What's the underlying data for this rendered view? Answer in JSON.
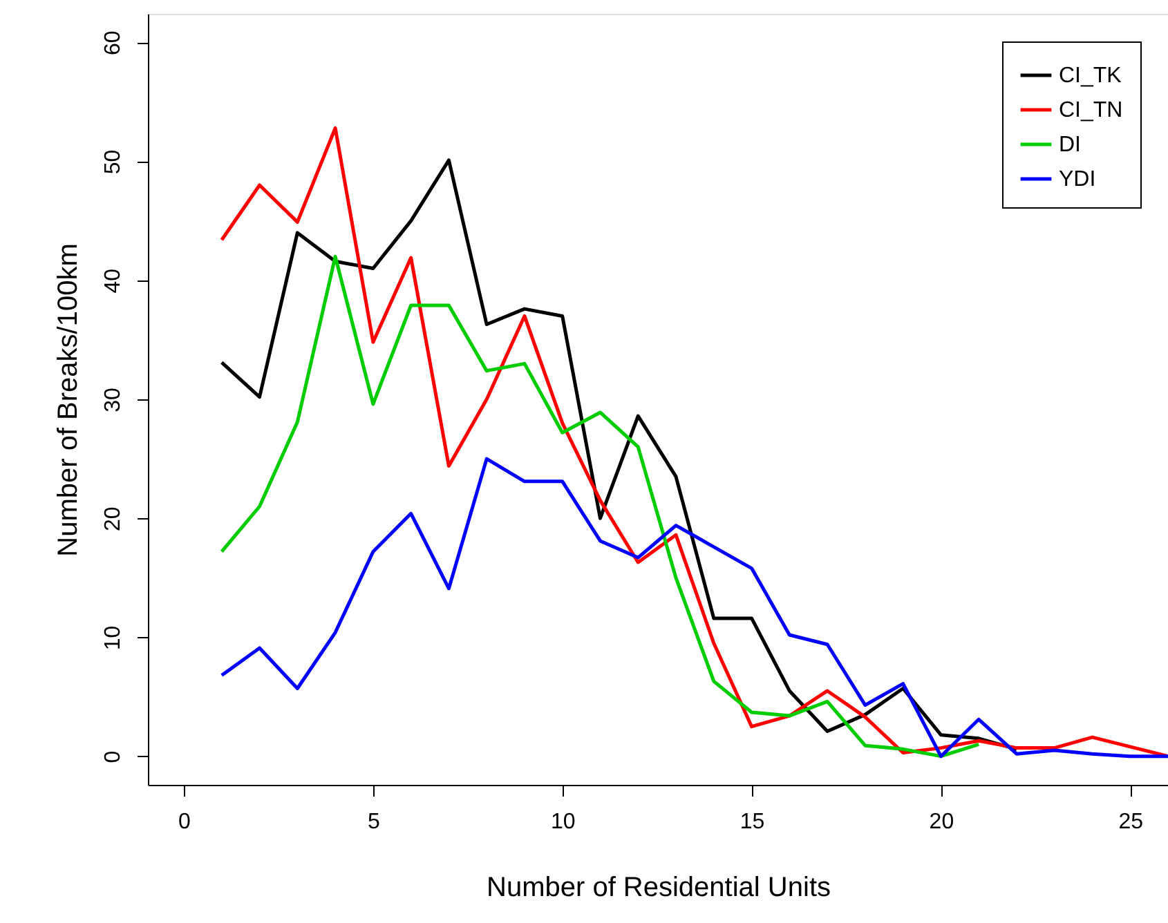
{
  "chart_data": {
    "type": "line",
    "xlabel": "Number of Residential Units",
    "ylabel": "Number of Breaks/100km",
    "xlim": [
      -0.95,
      26
    ],
    "xticks": [
      0,
      5,
      10,
      15,
      20,
      25
    ],
    "ylim": [
      -2.4,
      62.4
    ],
    "yticks": [
      0,
      10,
      20,
      30,
      40,
      50,
      60
    ],
    "grid": false,
    "legend": "top right",
    "marker": "none",
    "line_style": "solid",
    "series": [
      {
        "name": "CI_TK",
        "color": "#000000",
        "x": [
          1,
          2,
          3,
          4,
          5,
          6,
          7,
          8,
          9,
          10,
          11,
          12,
          13,
          14,
          15,
          16,
          17,
          18,
          19,
          20,
          21,
          22
        ],
        "values": [
          33.1,
          30.2,
          44,
          41.6,
          41,
          45,
          50.1,
          36.3,
          37.6,
          37,
          20,
          28.6,
          23.5,
          11.6,
          11.6,
          5.5,
          2.1,
          3.5,
          5.7,
          1.8,
          1.5,
          0.6
        ]
      },
      {
        "name": "CI_TN",
        "color": "#ff0000",
        "x": [
          1,
          2,
          3,
          4,
          5,
          6,
          7,
          8,
          9,
          10,
          11,
          12,
          13,
          14,
          15,
          16,
          17,
          18,
          19,
          20,
          21,
          22,
          23,
          24,
          25,
          26
        ],
        "values": [
          43.4,
          48,
          44.9,
          52.8,
          34.8,
          41.9,
          24.4,
          30,
          37,
          28,
          21.5,
          16.3,
          18.6,
          9.5,
          2.5,
          3.4,
          5.5,
          3.3,
          0.3,
          0.7,
          1.3,
          0.7,
          0.7,
          1.6,
          0.8,
          0
        ]
      },
      {
        "name": "DI",
        "color": "#00cc00",
        "x": [
          1,
          2,
          3,
          4,
          5,
          6,
          7,
          8,
          9,
          10,
          11,
          12,
          13,
          14,
          15,
          16,
          17,
          18,
          19,
          20,
          21
        ],
        "values": [
          17.2,
          21,
          28.1,
          42,
          29.6,
          37.9,
          37.9,
          32.4,
          33,
          27.2,
          28.9,
          26,
          15,
          6.3,
          3.7,
          3.4,
          4.6,
          0.9,
          0.6,
          0,
          1
        ]
      },
      {
        "name": "YDI",
        "color": "#0000ff",
        "x": [
          1,
          2,
          3,
          4,
          5,
          6,
          7,
          8,
          9,
          10,
          11,
          12,
          13,
          14,
          15,
          16,
          17,
          18,
          19,
          20,
          21,
          22,
          23,
          24,
          25,
          26
        ],
        "values": [
          6.8,
          9.1,
          5.7,
          10.4,
          17.2,
          20.4,
          14.1,
          25,
          23.1,
          23.1,
          18.1,
          16.7,
          19.4,
          17.6,
          15.8,
          10.2,
          9.4,
          4.3,
          6.1,
          0,
          3.1,
          0.2,
          0.5,
          0.2,
          0,
          0
        ]
      }
    ]
  }
}
